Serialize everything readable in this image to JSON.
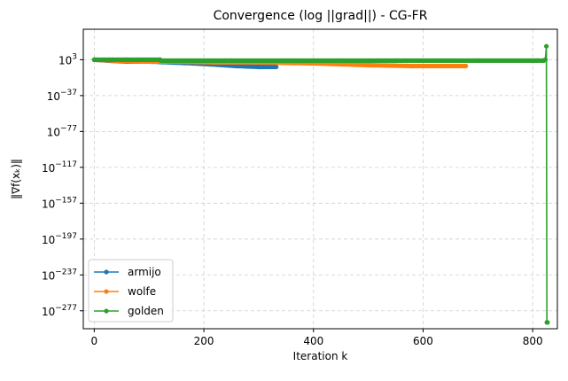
{
  "chart_data": {
    "type": "line",
    "title": "Convergence (log ||grad||) - CG-FR",
    "xlabel": "Iteration k",
    "ylabel": "‖∇f(xₖ)‖",
    "x_scale": "linear",
    "y_scale": "log",
    "xlim": [
      -20,
      845
    ],
    "ylim_log10": [
      -297,
      37
    ],
    "x_ticks": [
      0,
      200,
      400,
      600,
      800
    ],
    "y_ticks": [
      {
        "exp": 3,
        "label": "3"
      },
      {
        "exp": -37,
        "label": "−37"
      },
      {
        "exp": -77,
        "label": "−77"
      },
      {
        "exp": -117,
        "label": "−117"
      },
      {
        "exp": -157,
        "label": "−157"
      },
      {
        "exp": -197,
        "label": "−197"
      },
      {
        "exp": -237,
        "label": "−237"
      },
      {
        "exp": -277,
        "label": "−277"
      }
    ],
    "grid": true,
    "legend_position": "lower-left",
    "series": [
      {
        "name": "armijo",
        "color": "#1f77b4",
        "points_log10": [
          [
            0,
            3
          ],
          [
            25,
            2
          ],
          [
            60,
            1
          ],
          [
            100,
            1
          ],
          [
            140,
            0
          ],
          [
            180,
            -1
          ],
          [
            210,
            -2
          ],
          [
            260,
            -4
          ],
          [
            300,
            -5
          ],
          [
            332,
            -5
          ]
        ]
      },
      {
        "name": "wolfe",
        "color": "#ff7f0e",
        "points_log10": [
          [
            0,
            3
          ],
          [
            40,
            2
          ],
          [
            90,
            1
          ],
          [
            150,
            1
          ],
          [
            220,
            0
          ],
          [
            300,
            0
          ],
          [
            400,
            -1
          ],
          [
            500,
            -3
          ],
          [
            580,
            -4
          ],
          [
            640,
            -4
          ],
          [
            678,
            -4
          ]
        ]
      },
      {
        "name": "golden",
        "color": "#2ca02c",
        "points_log10": [
          [
            0,
            3
          ],
          [
            60,
            3
          ],
          [
            120,
            3
          ],
          [
            121,
            2
          ],
          [
            250,
            2
          ],
          [
            400,
            2
          ],
          [
            550,
            2
          ],
          [
            700,
            2
          ],
          [
            810,
            2
          ],
          [
            820,
            2
          ],
          [
            823,
            3
          ],
          [
            825,
            18
          ],
          [
            826,
            -290
          ],
          [
            827,
            -290
          ]
        ]
      }
    ]
  }
}
